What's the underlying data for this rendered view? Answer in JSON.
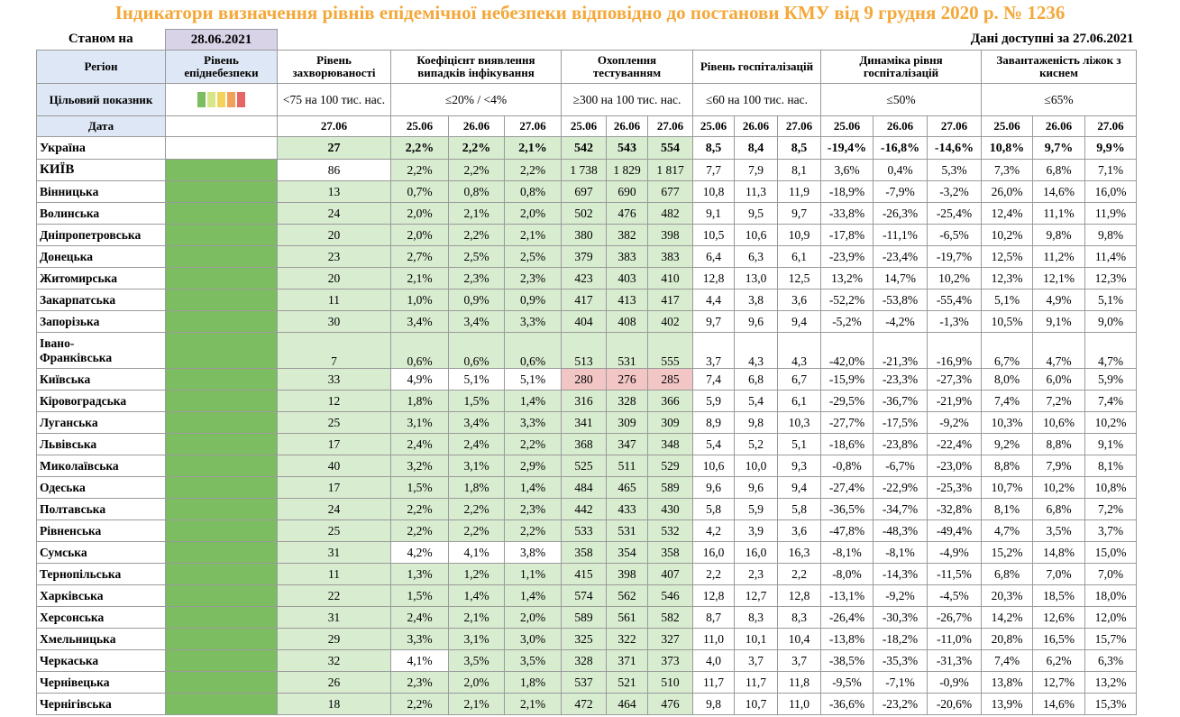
{
  "title": "Індикатори визначення рівнів епідемічної небезпеки відповідно до постанови КМУ від 9 грудня 2020 р. № 1236",
  "as_of_label": "Станом на",
  "as_of_date": "28.06.2021",
  "data_available_label": "Дані доступні за  27.06.2021",
  "headers": {
    "region": "Регіон",
    "level": "Рівень епіднебезпеки",
    "incidence": "Рівень захворюваності",
    "detection": "Коефіцієнт виявлення випадків інфікування",
    "testing": "Охоплення тестуванням",
    "hospital": "Рівень госпіталізацій",
    "dynamics": "Динаміка рівня госпіталізацій",
    "oxygen": "Завантаженість ліжок з киснем"
  },
  "targets": {
    "label": "Цільовий показник",
    "incidence": "<75 на 100 тис. нас.",
    "detection": "≤20% / <4%",
    "testing": "≥300 на 100 тис. нас.",
    "hospital": "≤60 на 100 тис. нас.",
    "dynamics": "≤50%",
    "oxygen": "≤65%"
  },
  "palette_colors": [
    "#7dbd61",
    "#d7e68a",
    "#f3d35a",
    "#f2a15a",
    "#e86565"
  ],
  "dates": {
    "label": "Дата",
    "incidence": "27.06",
    "three": [
      "25.06",
      "26.06",
      "27.06"
    ]
  },
  "colors": {
    "green": "#7dbd61",
    "light_green": "#d8ecd0",
    "pink": "#f3c6c6",
    "title_orange": "#f4a83a"
  },
  "rows": [
    {
      "name": "Україна",
      "inc": "27",
      "det": [
        "2,2%",
        "2,2%",
        "2,1%"
      ],
      "test": [
        "542",
        "543",
        "554"
      ],
      "hosp": [
        "8,5",
        "8,4",
        "8,5"
      ],
      "dyn": [
        "-19,4%",
        "-16,8%",
        "-14,6%"
      ],
      "oxy": [
        "10,8%",
        "9,7%",
        "9,9%"
      ]
    },
    {
      "name": "КИЇВ",
      "inc": "86",
      "det": [
        "2,2%",
        "2,2%",
        "2,2%"
      ],
      "test": [
        "1 738",
        "1 829",
        "1 817"
      ],
      "hosp": [
        "7,7",
        "7,9",
        "8,1"
      ],
      "dyn": [
        "3,6%",
        "0,4%",
        "5,3%"
      ],
      "oxy": [
        "7,3%",
        "6,8%",
        "7,1%"
      ]
    },
    {
      "name": "Вінницька",
      "inc": "13",
      "det": [
        "0,7%",
        "0,8%",
        "0,8%"
      ],
      "test": [
        "697",
        "690",
        "677"
      ],
      "hosp": [
        "10,8",
        "11,3",
        "11,9"
      ],
      "dyn": [
        "-18,9%",
        "-7,9%",
        "-3,2%"
      ],
      "oxy": [
        "26,0%",
        "14,6%",
        "16,0%"
      ]
    },
    {
      "name": "Волинська",
      "inc": "24",
      "det": [
        "2,0%",
        "2,1%",
        "2,0%"
      ],
      "test": [
        "502",
        "476",
        "482"
      ],
      "hosp": [
        "9,1",
        "9,5",
        "9,7"
      ],
      "dyn": [
        "-33,8%",
        "-26,3%",
        "-25,4%"
      ],
      "oxy": [
        "12,4%",
        "11,1%",
        "11,9%"
      ]
    },
    {
      "name": "Дніпропетровська",
      "inc": "20",
      "det": [
        "2,0%",
        "2,2%",
        "2,1%"
      ],
      "test": [
        "380",
        "382",
        "398"
      ],
      "hosp": [
        "10,5",
        "10,6",
        "10,9"
      ],
      "dyn": [
        "-17,8%",
        "-11,1%",
        "-6,5%"
      ],
      "oxy": [
        "10,2%",
        "9,8%",
        "9,8%"
      ]
    },
    {
      "name": "Донецька",
      "inc": "23",
      "det": [
        "2,7%",
        "2,5%",
        "2,5%"
      ],
      "test": [
        "379",
        "383",
        "383"
      ],
      "hosp": [
        "6,4",
        "6,3",
        "6,1"
      ],
      "dyn": [
        "-23,9%",
        "-23,4%",
        "-19,7%"
      ],
      "oxy": [
        "12,5%",
        "11,2%",
        "11,4%"
      ]
    },
    {
      "name": "Житомирська",
      "inc": "20",
      "det": [
        "2,1%",
        "2,3%",
        "2,3%"
      ],
      "test": [
        "423",
        "403",
        "410"
      ],
      "hosp": [
        "12,8",
        "13,0",
        "12,5"
      ],
      "dyn": [
        "13,2%",
        "14,7%",
        "10,2%"
      ],
      "oxy": [
        "12,3%",
        "12,1%",
        "12,3%"
      ]
    },
    {
      "name": "Закарпатська",
      "inc": "11",
      "det": [
        "1,0%",
        "0,9%",
        "0,9%"
      ],
      "test": [
        "417",
        "413",
        "417"
      ],
      "hosp": [
        "4,4",
        "3,8",
        "3,6"
      ],
      "dyn": [
        "-52,2%",
        "-53,8%",
        "-55,4%"
      ],
      "oxy": [
        "5,1%",
        "4,9%",
        "5,1%"
      ]
    },
    {
      "name": "Запорізька",
      "inc": "30",
      "det": [
        "3,4%",
        "3,4%",
        "3,3%"
      ],
      "test": [
        "404",
        "408",
        "402"
      ],
      "hosp": [
        "9,7",
        "9,6",
        "9,4"
      ],
      "dyn": [
        "-5,2%",
        "-4,2%",
        "-1,3%"
      ],
      "oxy": [
        "10,5%",
        "9,1%",
        "9,0%"
      ]
    },
    {
      "name": "Івано-Франківська",
      "name1": "Івано-",
      "name2": "Франківська",
      "inc": "7",
      "det": [
        "0,6%",
        "0,6%",
        "0,6%"
      ],
      "test": [
        "513",
        "531",
        "555"
      ],
      "hosp": [
        "3,7",
        "4,3",
        "4,3"
      ],
      "dyn": [
        "-42,0%",
        "-21,3%",
        "-16,9%"
      ],
      "oxy": [
        "6,7%",
        "4,7%",
        "4,7%"
      ]
    },
    {
      "name": "Київська",
      "inc": "33",
      "det": [
        "4,9%",
        "5,1%",
        "5,1%"
      ],
      "test": [
        "280",
        "276",
        "285"
      ],
      "hosp": [
        "7,4",
        "6,8",
        "6,7"
      ],
      "dyn": [
        "-15,9%",
        "-23,3%",
        "-27,3%"
      ],
      "oxy": [
        "8,0%",
        "6,0%",
        "5,9%"
      ]
    },
    {
      "name": "Кіровоградська",
      "inc": "12",
      "det": [
        "1,8%",
        "1,5%",
        "1,4%"
      ],
      "test": [
        "316",
        "328",
        "366"
      ],
      "hosp": [
        "5,9",
        "5,4",
        "6,1"
      ],
      "dyn": [
        "-29,5%",
        "-36,7%",
        "-21,9%"
      ],
      "oxy": [
        "7,4%",
        "7,2%",
        "7,4%"
      ]
    },
    {
      "name": "Луганська",
      "inc": "25",
      "det": [
        "3,1%",
        "3,4%",
        "3,3%"
      ],
      "test": [
        "341",
        "309",
        "309"
      ],
      "hosp": [
        "8,9",
        "9,8",
        "10,3"
      ],
      "dyn": [
        "-27,7%",
        "-17,5%",
        "-9,2%"
      ],
      "oxy": [
        "10,3%",
        "10,6%",
        "10,2%"
      ]
    },
    {
      "name": "Львівська",
      "inc": "17",
      "det": [
        "2,4%",
        "2,4%",
        "2,2%"
      ],
      "test": [
        "368",
        "347",
        "348"
      ],
      "hosp": [
        "5,4",
        "5,2",
        "5,1"
      ],
      "dyn": [
        "-18,6%",
        "-23,8%",
        "-22,4%"
      ],
      "oxy": [
        "9,2%",
        "8,8%",
        "9,1%"
      ]
    },
    {
      "name": "Миколаївська",
      "inc": "40",
      "det": [
        "3,2%",
        "3,1%",
        "2,9%"
      ],
      "test": [
        "525",
        "511",
        "529"
      ],
      "hosp": [
        "10,6",
        "10,0",
        "9,3"
      ],
      "dyn": [
        "-0,8%",
        "-6,7%",
        "-23,0%"
      ],
      "oxy": [
        "8,8%",
        "7,9%",
        "8,1%"
      ]
    },
    {
      "name": "Одеська",
      "inc": "17",
      "det": [
        "1,5%",
        "1,8%",
        "1,4%"
      ],
      "test": [
        "484",
        "465",
        "589"
      ],
      "hosp": [
        "9,6",
        "9,6",
        "9,4"
      ],
      "dyn": [
        "-27,4%",
        "-22,9%",
        "-25,3%"
      ],
      "oxy": [
        "10,7%",
        "10,2%",
        "10,8%"
      ]
    },
    {
      "name": "Полтавська",
      "inc": "24",
      "det": [
        "2,2%",
        "2,2%",
        "2,3%"
      ],
      "test": [
        "442",
        "433",
        "430"
      ],
      "hosp": [
        "5,8",
        "5,9",
        "5,8"
      ],
      "dyn": [
        "-36,5%",
        "-34,7%",
        "-32,8%"
      ],
      "oxy": [
        "8,1%",
        "6,8%",
        "7,2%"
      ]
    },
    {
      "name": "Рівненська",
      "inc": "25",
      "det": [
        "2,2%",
        "2,2%",
        "2,2%"
      ],
      "test": [
        "533",
        "531",
        "532"
      ],
      "hosp": [
        "4,2",
        "3,9",
        "3,6"
      ],
      "dyn": [
        "-47,8%",
        "-48,3%",
        "-49,4%"
      ],
      "oxy": [
        "4,7%",
        "3,5%",
        "3,7%"
      ]
    },
    {
      "name": "Сумська",
      "inc": "31",
      "det": [
        "4,2%",
        "4,1%",
        "3,8%"
      ],
      "test": [
        "358",
        "354",
        "358"
      ],
      "hosp": [
        "16,0",
        "16,0",
        "16,3"
      ],
      "dyn": [
        "-8,1%",
        "-8,1%",
        "-4,9%"
      ],
      "oxy": [
        "15,2%",
        "14,8%",
        "15,0%"
      ]
    },
    {
      "name": "Тернопільська",
      "inc": "11",
      "det": [
        "1,3%",
        "1,2%",
        "1,1%"
      ],
      "test": [
        "415",
        "398",
        "407"
      ],
      "hosp": [
        "2,2",
        "2,3",
        "2,2"
      ],
      "dyn": [
        "-8,0%",
        "-14,3%",
        "-11,5%"
      ],
      "oxy": [
        "6,8%",
        "7,0%",
        "7,0%"
      ]
    },
    {
      "name": "Харківська",
      "inc": "22",
      "det": [
        "1,5%",
        "1,4%",
        "1,4%"
      ],
      "test": [
        "574",
        "562",
        "546"
      ],
      "hosp": [
        "12,8",
        "12,7",
        "12,8"
      ],
      "dyn": [
        "-13,1%",
        "-9,2%",
        "-4,5%"
      ],
      "oxy": [
        "20,3%",
        "18,5%",
        "18,0%"
      ]
    },
    {
      "name": "Херсонська",
      "inc": "31",
      "det": [
        "2,4%",
        "2,1%",
        "2,0%"
      ],
      "test": [
        "589",
        "561",
        "582"
      ],
      "hosp": [
        "8,7",
        "8,3",
        "8,3"
      ],
      "dyn": [
        "-26,4%",
        "-30,3%",
        "-26,7%"
      ],
      "oxy": [
        "14,2%",
        "12,6%",
        "12,0%"
      ]
    },
    {
      "name": "Хмельницька",
      "inc": "29",
      "det": [
        "3,3%",
        "3,1%",
        "3,0%"
      ],
      "test": [
        "325",
        "322",
        "327"
      ],
      "hosp": [
        "11,0",
        "10,1",
        "10,4"
      ],
      "dyn": [
        "-13,8%",
        "-18,2%",
        "-11,0%"
      ],
      "oxy": [
        "20,8%",
        "16,5%",
        "15,7%"
      ]
    },
    {
      "name": "Черкаська",
      "inc": "32",
      "det": [
        "4,1%",
        "3,5%",
        "3,5%"
      ],
      "test": [
        "328",
        "371",
        "373"
      ],
      "hosp": [
        "4,0",
        "3,7",
        "3,7"
      ],
      "dyn": [
        "-38,5%",
        "-35,3%",
        "-31,3%"
      ],
      "oxy": [
        "7,4%",
        "6,2%",
        "6,3%"
      ]
    },
    {
      "name": "Чернівецька",
      "inc": "26",
      "det": [
        "2,3%",
        "2,0%",
        "1,8%"
      ],
      "test": [
        "537",
        "521",
        "510"
      ],
      "hosp": [
        "11,7",
        "11,7",
        "11,8"
      ],
      "dyn": [
        "-9,5%",
        "-7,1%",
        "-0,9%"
      ],
      "oxy": [
        "13,8%",
        "12,7%",
        "13,2%"
      ]
    },
    {
      "name": "Чернігівська",
      "inc": "18",
      "det": [
        "2,2%",
        "2,1%",
        "2,1%"
      ],
      "test": [
        "472",
        "464",
        "476"
      ],
      "hosp": [
        "9,8",
        "10,7",
        "11,0"
      ],
      "dyn": [
        "-36,6%",
        "-23,2%",
        "-20,6%"
      ],
      "oxy": [
        "13,9%",
        "14,6%",
        "15,3%"
      ]
    }
  ]
}
